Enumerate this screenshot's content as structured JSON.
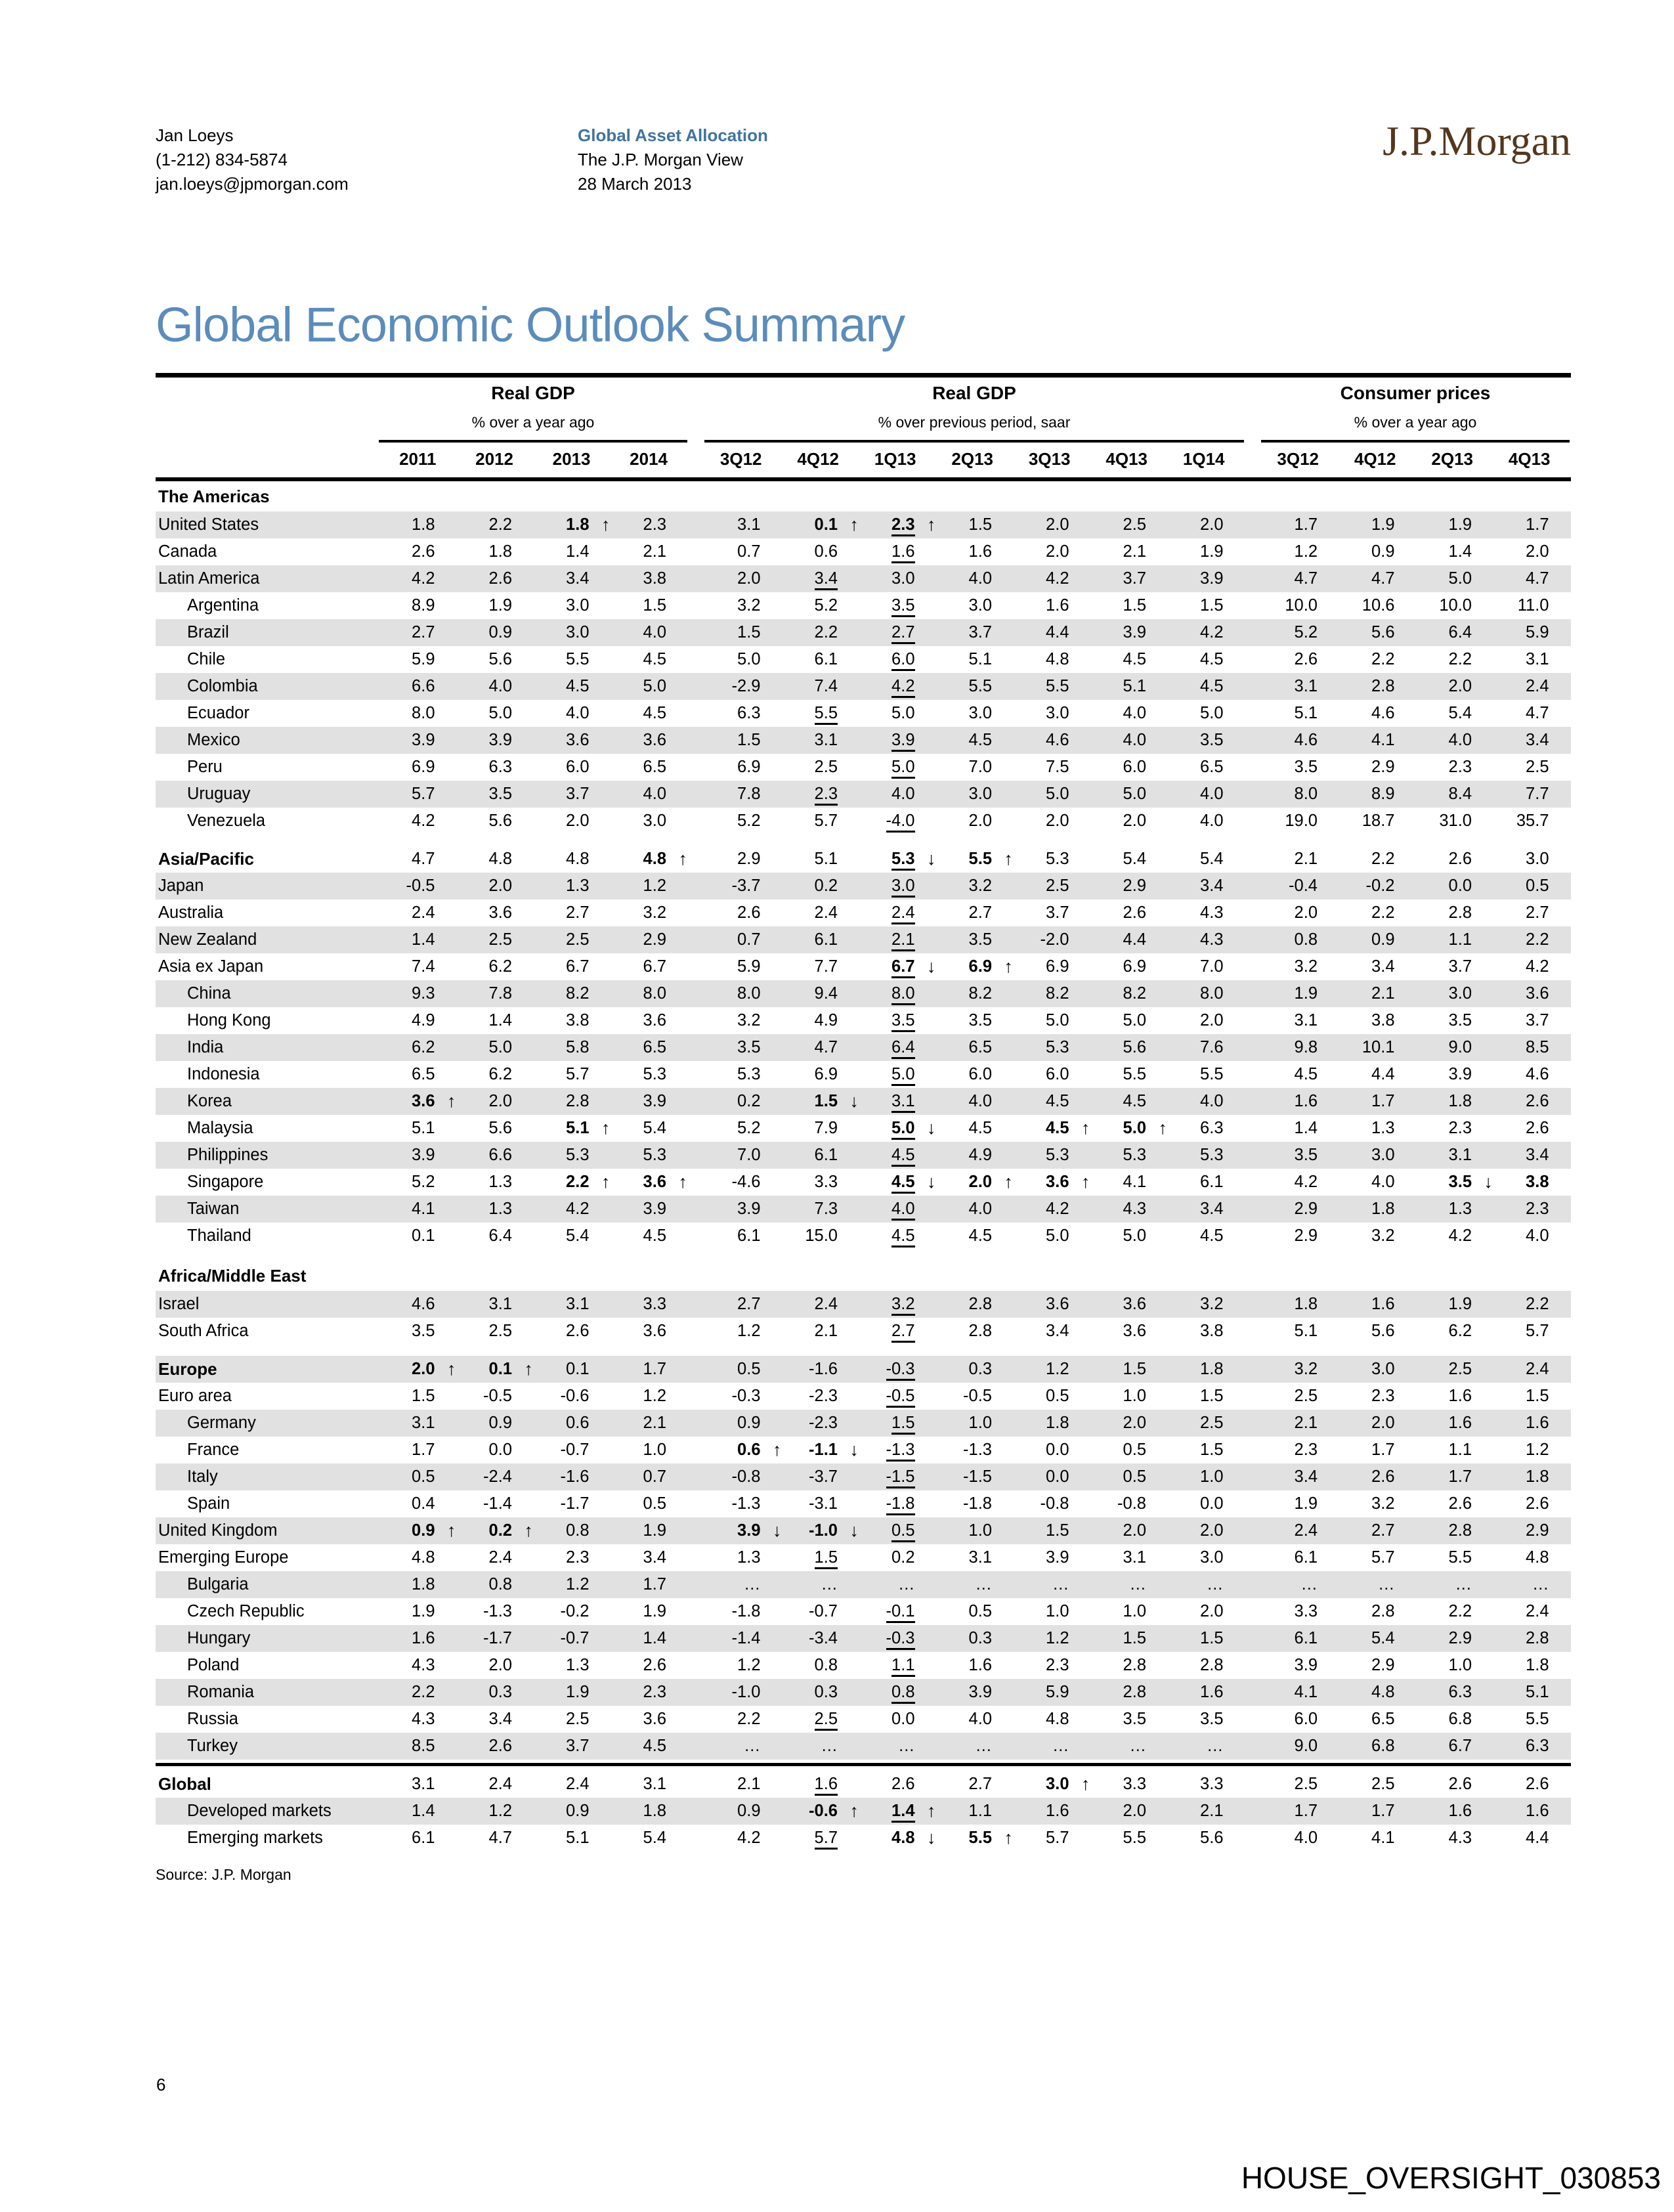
{
  "header": {
    "author": "Jan Loeys",
    "phone": "(1-212) 834-5874",
    "email": "jan.loeys@jpmorgan.com",
    "group": "Global Asset Allocation",
    "publication": "The J.P. Morgan View",
    "date": "28 March 2013",
    "logo": "J.P.Morgan"
  },
  "page_title": "Global Economic Outlook Summary",
  "accent_colors": {
    "title_blue": "#5b8cbb",
    "heading_blue": "#41749f",
    "logo_brown": "#54371e",
    "row_shade": "#e1e1e1"
  },
  "table": {
    "groups": [
      {
        "title": "Real GDP",
        "subtitle": "% over a year ago",
        "cols": [
          "2011",
          "2012",
          "2013",
          "2014"
        ]
      },
      {
        "title": "Real GDP",
        "subtitle": "% over previous period, saar",
        "cols": [
          "3Q12",
          "4Q12",
          "1Q13",
          "2Q13",
          "3Q13",
          "4Q13",
          "1Q14"
        ]
      },
      {
        "title": "Consumer prices",
        "subtitle": "% over a year ago",
        "cols": [
          "3Q12",
          "4Q12",
          "2Q13",
          "4Q13"
        ]
      }
    ],
    "legend": {
      "b": "bold revision",
      "u": "underline marks latest reported/forecast boundary",
      "^": "revised up arrow",
      "v": "revised down arrow"
    },
    "rows": [
      {
        "type": "section",
        "label": "The Americas"
      },
      {
        "label": "United States",
        "indent": 0,
        "shade": true,
        "values": [
          "1.8",
          "2.2",
          "1.8|b^",
          "2.3",
          "3.1",
          "0.1|b^",
          "2.3|bu^",
          "1.5",
          "2.0",
          "2.5",
          "2.0",
          "1.7",
          "1.9",
          "1.9",
          "1.7"
        ]
      },
      {
        "label": "Canada",
        "indent": 0,
        "shade": false,
        "values": [
          "2.6",
          "1.8",
          "1.4",
          "2.1",
          "0.7",
          "0.6",
          "1.6|u",
          "1.6",
          "2.0",
          "2.1",
          "1.9",
          "1.2",
          "0.9",
          "1.4",
          "2.0"
        ]
      },
      {
        "label": "Latin America",
        "indent": 0,
        "shade": true,
        "values": [
          "4.2",
          "2.6",
          "3.4",
          "3.8",
          "2.0",
          "3.4|u",
          "3.0",
          "4.0",
          "4.2",
          "3.7",
          "3.9",
          "4.7",
          "4.7",
          "5.0",
          "4.7"
        ]
      },
      {
        "label": "Argentina",
        "indent": 1,
        "shade": false,
        "values": [
          "8.9",
          "1.9",
          "3.0",
          "1.5",
          "3.2",
          "5.2",
          "3.5|u",
          "3.0",
          "1.6",
          "1.5",
          "1.5",
          "10.0",
          "10.6",
          "10.0",
          "11.0"
        ]
      },
      {
        "label": "Brazil",
        "indent": 1,
        "shade": true,
        "values": [
          "2.7",
          "0.9",
          "3.0",
          "4.0",
          "1.5",
          "2.2",
          "2.7|u",
          "3.7",
          "4.4",
          "3.9",
          "4.2",
          "5.2",
          "5.6",
          "6.4",
          "5.9"
        ]
      },
      {
        "label": "Chile",
        "indent": 1,
        "shade": false,
        "values": [
          "5.9",
          "5.6",
          "5.5",
          "4.5",
          "5.0",
          "6.1",
          "6.0|u",
          "5.1",
          "4.8",
          "4.5",
          "4.5",
          "2.6",
          "2.2",
          "2.2",
          "3.1"
        ]
      },
      {
        "label": "Colombia",
        "indent": 1,
        "shade": true,
        "values": [
          "6.6",
          "4.0",
          "4.5",
          "5.0",
          "-2.9",
          "7.4",
          "4.2|u",
          "5.5",
          "5.5",
          "5.1",
          "4.5",
          "3.1",
          "2.8",
          "2.0",
          "2.4"
        ]
      },
      {
        "label": "Ecuador",
        "indent": 1,
        "shade": false,
        "values": [
          "8.0",
          "5.0",
          "4.0",
          "4.5",
          "6.3",
          "5.5|u",
          "5.0",
          "3.0",
          "3.0",
          "4.0",
          "5.0",
          "5.1",
          "4.6",
          "5.4",
          "4.7"
        ]
      },
      {
        "label": "Mexico",
        "indent": 1,
        "shade": true,
        "values": [
          "3.9",
          "3.9",
          "3.6",
          "3.6",
          "1.5",
          "3.1",
          "3.9|u",
          "4.5",
          "4.6",
          "4.0",
          "3.5",
          "4.6",
          "4.1",
          "4.0",
          "3.4"
        ]
      },
      {
        "label": "Peru",
        "indent": 1,
        "shade": false,
        "values": [
          "6.9",
          "6.3",
          "6.0",
          "6.5",
          "6.9",
          "2.5",
          "5.0|u",
          "7.0",
          "7.5",
          "6.0",
          "6.5",
          "3.5",
          "2.9",
          "2.3",
          "2.5"
        ]
      },
      {
        "label": "Uruguay",
        "indent": 1,
        "shade": true,
        "values": [
          "5.7",
          "3.5",
          "3.7",
          "4.0",
          "7.8",
          "2.3|u",
          "4.0",
          "3.0",
          "5.0",
          "5.0",
          "4.0",
          "8.0",
          "8.9",
          "8.4",
          "7.7"
        ]
      },
      {
        "label": "Venezuela",
        "indent": 1,
        "shade": false,
        "values": [
          "4.2",
          "5.6",
          "2.0",
          "3.0",
          "5.2",
          "5.7",
          "-4.0|u",
          "2.0",
          "2.0",
          "2.0",
          "4.0",
          "19.0",
          "18.7",
          "31.0",
          "35.7"
        ]
      },
      {
        "type": "gap"
      },
      {
        "label": "Asia/Pacific",
        "indent": 0,
        "bold": true,
        "shade": false,
        "values": [
          "4.7",
          "4.8",
          "4.8",
          "4.8|b^",
          "2.9",
          "5.1",
          "5.3|buv",
          "5.5|b^",
          "5.3",
          "5.4",
          "5.4",
          "2.1",
          "2.2",
          "2.6",
          "3.0"
        ]
      },
      {
        "label": "Japan",
        "indent": 0,
        "shade": true,
        "values": [
          "-0.5",
          "2.0",
          "1.3",
          "1.2",
          "-3.7",
          "0.2",
          "3.0|u",
          "3.2",
          "2.5",
          "2.9",
          "3.4",
          "-0.4",
          "-0.2",
          "0.0",
          "0.5"
        ]
      },
      {
        "label": "Australia",
        "indent": 0,
        "shade": false,
        "values": [
          "2.4",
          "3.6",
          "2.7",
          "3.2",
          "2.6",
          "2.4",
          "2.4|u",
          "2.7",
          "3.7",
          "2.6",
          "4.3",
          "2.0",
          "2.2",
          "2.8",
          "2.7"
        ]
      },
      {
        "label": "New Zealand",
        "indent": 0,
        "shade": true,
        "values": [
          "1.4",
          "2.5",
          "2.5",
          "2.9",
          "0.7",
          "6.1",
          "2.1|u",
          "3.5",
          "-2.0",
          "4.4",
          "4.3",
          "0.8",
          "0.9",
          "1.1",
          "2.2"
        ]
      },
      {
        "label": "Asia ex Japan",
        "indent": 0,
        "shade": false,
        "values": [
          "7.4",
          "6.2",
          "6.7",
          "6.7",
          "5.9",
          "7.7",
          "6.7|buv",
          "6.9|b^",
          "6.9",
          "6.9",
          "7.0",
          "3.2",
          "3.4",
          "3.7",
          "4.2"
        ]
      },
      {
        "label": "China",
        "indent": 1,
        "shade": true,
        "values": [
          "9.3",
          "7.8",
          "8.2",
          "8.0",
          "8.0",
          "9.4",
          "8.0|u",
          "8.2",
          "8.2",
          "8.2",
          "8.0",
          "1.9",
          "2.1",
          "3.0",
          "3.6"
        ]
      },
      {
        "label": "Hong Kong",
        "indent": 1,
        "shade": false,
        "values": [
          "4.9",
          "1.4",
          "3.8",
          "3.6",
          "3.2",
          "4.9",
          "3.5|u",
          "3.5",
          "5.0",
          "5.0",
          "2.0",
          "3.1",
          "3.8",
          "3.5",
          "3.7"
        ]
      },
      {
        "label": "India",
        "indent": 1,
        "shade": true,
        "values": [
          "6.2",
          "5.0",
          "5.8",
          "6.5",
          "3.5",
          "4.7",
          "6.4|u",
          "6.5",
          "5.3",
          "5.6",
          "7.6",
          "9.8",
          "10.1",
          "9.0",
          "8.5"
        ]
      },
      {
        "label": "Indonesia",
        "indent": 1,
        "shade": false,
        "values": [
          "6.5",
          "6.2",
          "5.7",
          "5.3",
          "5.3",
          "6.9",
          "5.0|u",
          "6.0",
          "6.0",
          "5.5",
          "5.5",
          "4.5",
          "4.4",
          "3.9",
          "4.6"
        ]
      },
      {
        "label": "Korea",
        "indent": 1,
        "shade": true,
        "values": [
          "3.6|b^",
          "2.0",
          "2.8",
          "3.9",
          "0.2",
          "1.5|bv",
          "3.1|u",
          "4.0",
          "4.5",
          "4.5",
          "4.0",
          "1.6",
          "1.7",
          "1.8",
          "2.6"
        ]
      },
      {
        "label": "Malaysia",
        "indent": 1,
        "shade": false,
        "values": [
          "5.1",
          "5.6",
          "5.1|b^",
          "5.4",
          "5.2",
          "7.9",
          "5.0|buv",
          "4.5",
          "4.5|b^",
          "5.0|b^",
          "6.3",
          "1.4",
          "1.3",
          "2.3",
          "2.6"
        ]
      },
      {
        "label": "Philippines",
        "indent": 1,
        "shade": true,
        "values": [
          "3.9",
          "6.6",
          "5.3",
          "5.3",
          "7.0",
          "6.1",
          "4.5|u",
          "4.9",
          "5.3",
          "5.3",
          "5.3",
          "3.5",
          "3.0",
          "3.1",
          "3.4"
        ]
      },
      {
        "label": "Singapore",
        "indent": 1,
        "shade": false,
        "values": [
          "5.2",
          "1.3",
          "2.2|b^",
          "3.6|b^",
          "-4.6",
          "3.3",
          "4.5|buv",
          "2.0|b^",
          "3.6|b^",
          "4.1",
          "6.1",
          "4.2",
          "4.0",
          "3.5|bv",
          "3.8|b"
        ]
      },
      {
        "label": "Taiwan",
        "indent": 1,
        "shade": true,
        "values": [
          "4.1",
          "1.3",
          "4.2",
          "3.9",
          "3.9",
          "7.3",
          "4.0|u",
          "4.0",
          "4.2",
          "4.3",
          "3.4",
          "2.9",
          "1.8",
          "1.3",
          "2.3"
        ]
      },
      {
        "label": "Thailand",
        "indent": 1,
        "shade": false,
        "values": [
          "0.1",
          "6.4",
          "5.4",
          "4.5",
          "6.1",
          "15.0",
          "4.5|u",
          "4.5",
          "5.0",
          "5.0",
          "4.5",
          "2.9",
          "3.2",
          "4.2",
          "4.0"
        ]
      },
      {
        "type": "gap"
      },
      {
        "type": "section",
        "label": "Africa/Middle East"
      },
      {
        "label": "Israel",
        "indent": 0,
        "shade": true,
        "values": [
          "4.6",
          "3.1",
          "3.1",
          "3.3",
          "2.7",
          "2.4",
          "3.2|u",
          "2.8",
          "3.6",
          "3.6",
          "3.2",
          "1.8",
          "1.6",
          "1.9",
          "2.2"
        ]
      },
      {
        "label": "South Africa",
        "indent": 0,
        "shade": false,
        "values": [
          "3.5",
          "2.5",
          "2.6",
          "3.6",
          "1.2",
          "2.1",
          "2.7|u",
          "2.8",
          "3.4",
          "3.6",
          "3.8",
          "5.1",
          "5.6",
          "6.2",
          "5.7"
        ]
      },
      {
        "type": "gap"
      },
      {
        "label": "Europe",
        "indent": 0,
        "bold": true,
        "shade": true,
        "values": [
          "2.0|b^",
          "0.1|b^",
          "0.1",
          "1.7",
          "0.5",
          "-1.6",
          "-0.3|u",
          "0.3",
          "1.2",
          "1.5",
          "1.8",
          "3.2",
          "3.0",
          "2.5",
          "2.4"
        ]
      },
      {
        "label": "Euro area",
        "indent": 0,
        "shade": false,
        "values": [
          "1.5",
          "-0.5",
          "-0.6",
          "1.2",
          "-0.3",
          "-2.3",
          "-0.5|u",
          "-0.5",
          "0.5",
          "1.0",
          "1.5",
          "2.5",
          "2.3",
          "1.6",
          "1.5"
        ]
      },
      {
        "label": "Germany",
        "indent": 1,
        "shade": true,
        "values": [
          "3.1",
          "0.9",
          "0.6",
          "2.1",
          "0.9",
          "-2.3",
          "1.5|u",
          "1.0",
          "1.8",
          "2.0",
          "2.5",
          "2.1",
          "2.0",
          "1.6",
          "1.6"
        ]
      },
      {
        "label": "France",
        "indent": 1,
        "shade": false,
        "values": [
          "1.7",
          "0.0",
          "-0.7",
          "1.0",
          "0.6|b^",
          "-1.1|bv",
          "-1.3|u",
          "-1.3",
          "0.0",
          "0.5",
          "1.5",
          "2.3",
          "1.7",
          "1.1",
          "1.2"
        ]
      },
      {
        "label": "Italy",
        "indent": 1,
        "shade": true,
        "values": [
          "0.5",
          "-2.4",
          "-1.6",
          "0.7",
          "-0.8",
          "-3.7",
          "-1.5|u",
          "-1.5",
          "0.0",
          "0.5",
          "1.0",
          "3.4",
          "2.6",
          "1.7",
          "1.8"
        ]
      },
      {
        "label": "Spain",
        "indent": 1,
        "shade": false,
        "values": [
          "0.4",
          "-1.4",
          "-1.7",
          "0.5",
          "-1.3",
          "-3.1",
          "-1.8|u",
          "-1.8",
          "-0.8",
          "-0.8",
          "0.0",
          "1.9",
          "3.2",
          "2.6",
          "2.6"
        ]
      },
      {
        "label": "United Kingdom",
        "indent": 0,
        "shade": true,
        "values": [
          "0.9|b^",
          "0.2|b^",
          "0.8",
          "1.9",
          "3.9|bv",
          "-1.0|bv",
          "0.5|u",
          "1.0",
          "1.5",
          "2.0",
          "2.0",
          "2.4",
          "2.7",
          "2.8",
          "2.9"
        ]
      },
      {
        "label": "Emerging Europe",
        "indent": 0,
        "shade": false,
        "values": [
          "4.8",
          "2.4",
          "2.3",
          "3.4",
          "1.3",
          "1.5|u",
          "0.2",
          "3.1",
          "3.9",
          "3.1",
          "3.0",
          "6.1",
          "5.7",
          "5.5",
          "4.8"
        ]
      },
      {
        "label": "Bulgaria",
        "indent": 1,
        "shade": true,
        "values": [
          "1.8",
          "0.8",
          "1.2",
          "1.7",
          "…",
          "…",
          "…",
          "…",
          "…",
          "…",
          "…",
          "…",
          "…",
          "…",
          "…"
        ]
      },
      {
        "label": "Czech Republic",
        "indent": 1,
        "shade": false,
        "values": [
          "1.9",
          "-1.3",
          "-0.2",
          "1.9",
          "-1.8",
          "-0.7",
          "-0.1|u",
          "0.5",
          "1.0",
          "1.0",
          "2.0",
          "3.3",
          "2.8",
          "2.2",
          "2.4"
        ]
      },
      {
        "label": "Hungary",
        "indent": 1,
        "shade": true,
        "values": [
          "1.6",
          "-1.7",
          "-0.7",
          "1.4",
          "-1.4",
          "-3.4",
          "-0.3|u",
          "0.3",
          "1.2",
          "1.5",
          "1.5",
          "6.1",
          "5.4",
          "2.9",
          "2.8"
        ]
      },
      {
        "label": "Poland",
        "indent": 1,
        "shade": false,
        "values": [
          "4.3",
          "2.0",
          "1.3",
          "2.6",
          "1.2",
          "0.8",
          "1.1|u",
          "1.6",
          "2.3",
          "2.8",
          "2.8",
          "3.9",
          "2.9",
          "1.0",
          "1.8"
        ]
      },
      {
        "label": "Romania",
        "indent": 1,
        "shade": true,
        "values": [
          "2.2",
          "0.3",
          "1.9",
          "2.3",
          "-1.0",
          "0.3",
          "0.8|u",
          "3.9",
          "5.9",
          "2.8",
          "1.6",
          "4.1",
          "4.8",
          "6.3",
          "5.1"
        ]
      },
      {
        "label": "Russia",
        "indent": 1,
        "shade": false,
        "values": [
          "4.3",
          "3.4",
          "2.5",
          "3.6",
          "2.2",
          "2.5|u",
          "0.0",
          "4.0",
          "4.8",
          "3.5",
          "3.5",
          "6.0",
          "6.5",
          "6.8",
          "5.5"
        ]
      },
      {
        "label": "Turkey",
        "indent": 1,
        "shade": true,
        "values": [
          "8.5",
          "2.6",
          "3.7",
          "4.5",
          "…",
          "…",
          "…",
          "…",
          "…",
          "…",
          "…",
          "9.0",
          "6.8",
          "6.7",
          "6.3"
        ]
      },
      {
        "type": "rule"
      },
      {
        "label": "Global",
        "indent": 0,
        "bold": true,
        "shade": false,
        "values": [
          "3.1",
          "2.4",
          "2.4",
          "3.1",
          "2.1",
          "1.6|u",
          "2.6",
          "2.7",
          "3.0|b^",
          "3.3",
          "3.3",
          "2.5",
          "2.5",
          "2.6",
          "2.6"
        ]
      },
      {
        "label": "Developed markets",
        "indent": 1,
        "shade": true,
        "values": [
          "1.4",
          "1.2",
          "0.9",
          "1.8",
          "0.9",
          "-0.6|b^",
          "1.4|bu^",
          "1.1",
          "1.6",
          "2.0",
          "2.1",
          "1.7",
          "1.7",
          "1.6",
          "1.6"
        ]
      },
      {
        "label": "Emerging markets",
        "indent": 1,
        "shade": false,
        "values": [
          "6.1",
          "4.7",
          "5.1",
          "5.4",
          "4.2",
          "5.7|u",
          "4.8|bv",
          "5.5|b^",
          "5.7",
          "5.5",
          "5.6",
          "4.0",
          "4.1",
          "4.3",
          "4.4"
        ]
      }
    ]
  },
  "footer": {
    "source": "Source: J.P. Morgan",
    "page_number": "6",
    "watermark": "HOUSE_OVERSIGHT_030853"
  }
}
